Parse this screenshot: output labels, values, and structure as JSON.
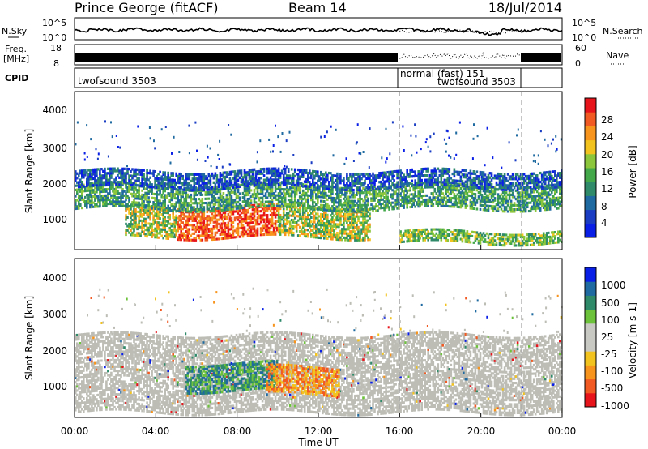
{
  "header": {
    "station": "Prince George (fitACF)",
    "beam": "Beam 14",
    "date": "18/Jul/2014"
  },
  "time_axis": {
    "ticks": [
      "00:00",
      "04:00",
      "08:00",
      "12:00",
      "16:00",
      "20:00",
      "00:00"
    ],
    "label": "Time UT"
  },
  "noise_panel": {
    "left_label": "N.Sky",
    "right_label": "N.Search",
    "left_ticks": [
      "10^5",
      "10^0"
    ],
    "right_ticks": [
      "10^5",
      "10^0"
    ]
  },
  "freq_panel": {
    "left_label_1": "Freq.",
    "left_label_2": "[MHz]",
    "right_label": "Nave",
    "left_ticks": [
      "18",
      "8"
    ],
    "right_ticks": [
      "60",
      "0"
    ]
  },
  "cpid_panel": {
    "label": "CPID",
    "segments": [
      {
        "name": "twofsound 3503",
        "start": 0,
        "end": 16
      },
      {
        "name": "normal (fast) 151",
        "start": 16,
        "end": 22
      },
      {
        "name": "twofsound 3503",
        "start": 22,
        "end": 24
      }
    ],
    "label_under": "twofsound 3503"
  },
  "colors": {
    "power_scale": [
      "#0a1fe6",
      "#1a3dc4",
      "#1f6aa0",
      "#2f8a6a",
      "#43a84a",
      "#8cc63c",
      "#f2c31e",
      "#f7941d",
      "#f15a22",
      "#e8141b"
    ],
    "velocity_scale": [
      "#e8141b",
      "#f15a22",
      "#f7941d",
      "#f2c31e",
      "#c9c9c3",
      "#c9c9c3",
      "#6cc23a",
      "#2f8a6a",
      "#1f6aa0",
      "#0a1fe6"
    ],
    "gray_scatter": "#bdbdb6"
  },
  "chart_data": [
    {
      "type": "heatmap",
      "title": "",
      "xlabel": "",
      "ylabel": "Slant Range [km]",
      "xlim": [
        0,
        24
      ],
      "ylim": [
        180,
        4600
      ],
      "yticks": [
        "1000",
        "2000",
        "3000",
        "4000"
      ],
      "colorbar": {
        "label": "Power [dB]",
        "ticks": [
          "4",
          "8",
          "12",
          "16",
          "20",
          "24",
          "28"
        ],
        "range": [
          0,
          30
        ]
      },
      "features": [
        {
          "name": "band-lower",
          "start": 2.5,
          "end": 14.5,
          "range_km": [
            500,
            1400
          ],
          "peak": "28+",
          "peak_hours": [
            5,
            10
          ]
        },
        {
          "name": "band-middle",
          "start": 0,
          "end": 24,
          "range_km": [
            1300,
            2000
          ],
          "peak": "12-16"
        },
        {
          "name": "band-upper",
          "start": 0,
          "end": 24,
          "range_km": [
            1900,
            2400
          ],
          "peak": "4-12"
        },
        {
          "name": "band-late-low",
          "start": 16,
          "end": 24,
          "range_km": [
            350,
            700
          ],
          "peak": "12-20"
        }
      ]
    },
    {
      "type": "heatmap",
      "title": "",
      "xlabel": "Time UT",
      "ylabel": "Slant Range [km]",
      "xlim": [
        0,
        24
      ],
      "ylim": [
        180,
        4600
      ],
      "yticks": [
        "1000",
        "2000",
        "3000",
        "4000"
      ],
      "colorbar": {
        "label": "Velocity [m s-1]",
        "ticks": [
          "1000",
          "500",
          "100",
          "25",
          "-25",
          "-100",
          "-500",
          "-1000"
        ],
        "range": [
          -1000,
          1000
        ]
      },
      "features": [
        {
          "name": "ground-scatter",
          "start": 0,
          "end": 24,
          "range_km": [
            300,
            2500
          ],
          "value": "|v| < 25"
        },
        {
          "name": "green-patch",
          "start": 5.5,
          "end": 10,
          "range_km": [
            900,
            1700
          ],
          "value": "100 to 500"
        },
        {
          "name": "orange-patch",
          "start": 9.5,
          "end": 13,
          "range_km": [
            800,
            1600
          ],
          "value": "-100 to -500"
        }
      ]
    }
  ]
}
